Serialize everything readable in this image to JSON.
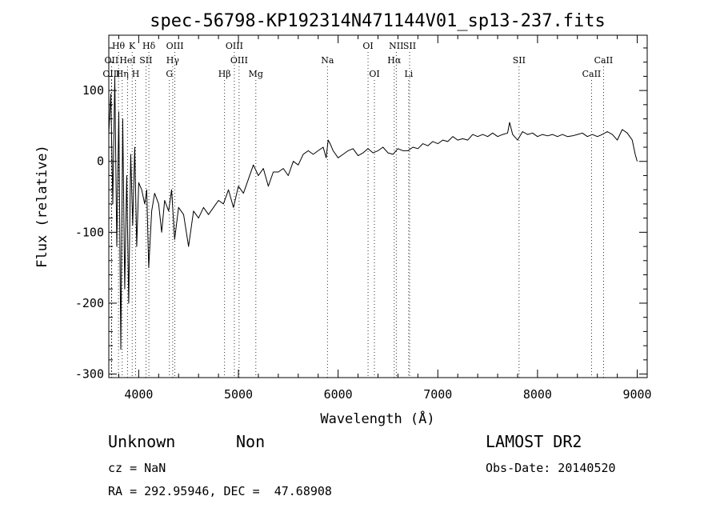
{
  "chart_data": {
    "type": "line",
    "title": "spec-56798-KP192314N471144V01_sp13-237.fits",
    "xlabel": "Wavelength (Å)",
    "ylabel": "Flux (relative)",
    "xlim": [
      3700,
      9100
    ],
    "ylim": [
      -305,
      178
    ],
    "xticks": [
      4000,
      5000,
      6000,
      7000,
      8000,
      9000
    ],
    "yticks": [
      -300,
      -200,
      -100,
      0,
      100
    ],
    "grid": false,
    "spectral_lines": [
      {
        "label": "Hθ",
        "wavelength": 3797,
        "row": 1
      },
      {
        "label": "K",
        "wavelength": 3934,
        "row": 1
      },
      {
        "label": "Hδ",
        "wavelength": 4102,
        "row": 1
      },
      {
        "label": "OIII",
        "wavelength": 4363,
        "row": 1
      },
      {
        "label": "OIII",
        "wavelength": 4959,
        "row": 1
      },
      {
        "label": "OI",
        "wavelength": 6300,
        "row": 1
      },
      {
        "label": "NII",
        "wavelength": 6583,
        "row": 1
      },
      {
        "label": "SII",
        "wavelength": 6717,
        "row": 1
      },
      {
        "label": "OII",
        "wavelength": 3727,
        "row": 2
      },
      {
        "label": "HeI",
        "wavelength": 3889,
        "row": 2
      },
      {
        "label": "SII",
        "wavelength": 4072,
        "row": 2
      },
      {
        "label": "Hγ",
        "wavelength": 4341,
        "row": 2
      },
      {
        "label": "OIII",
        "wavelength": 5007,
        "row": 2
      },
      {
        "label": "Na",
        "wavelength": 5893,
        "row": 2
      },
      {
        "label": "Hα",
        "wavelength": 6563,
        "row": 2
      },
      {
        "label": "SII",
        "wavelength": 7815,
        "row": 2
      },
      {
        "label": "CaII",
        "wavelength": 8662,
        "row": 2
      },
      {
        "label": "OIII",
        "wavelength": 3727,
        "row": 3
      },
      {
        "label": "Hη",
        "wavelength": 3835,
        "row": 3
      },
      {
        "label": "H",
        "wavelength": 3969,
        "row": 3
      },
      {
        "label": "G",
        "wavelength": 4308,
        "row": 3
      },
      {
        "label": "Hβ",
        "wavelength": 4861,
        "row": 3
      },
      {
        "label": "Mg",
        "wavelength": 5175,
        "row": 3
      },
      {
        "label": "OI",
        "wavelength": 6364,
        "row": 3
      },
      {
        "label": "Li",
        "wavelength": 6708,
        "row": 3
      },
      {
        "label": "CaII",
        "wavelength": 8542,
        "row": 3
      }
    ],
    "series": [
      {
        "x": [
          3700,
          3720,
          3740,
          3760,
          3780,
          3800,
          3820,
          3840,
          3860,
          3880,
          3900,
          3920,
          3940,
          3960,
          3980,
          4000,
          4030,
          4060,
          4080,
          4100,
          4130,
          4160,
          4200,
          4230,
          4260,
          4300,
          4330,
          4360,
          4400,
          4450,
          4500,
          4550,
          4600,
          4650,
          4700,
          4750,
          4800,
          4850,
          4900,
          4950,
          5000,
          5050,
          5100,
          5150,
          5200,
          5250,
          5300,
          5350,
          5400,
          5450,
          5500,
          5550,
          5600,
          5650,
          5700,
          5750,
          5800,
          5850,
          5880,
          5900,
          5920,
          5950,
          6000,
          6050,
          6100,
          6150,
          6200,
          6250,
          6300,
          6350,
          6400,
          6450,
          6500,
          6550,
          6600,
          6650,
          6700,
          6750,
          6800,
          6850,
          6900,
          6950,
          7000,
          7050,
          7100,
          7150,
          7200,
          7250,
          7300,
          7350,
          7400,
          7450,
          7500,
          7550,
          7600,
          7650,
          7700,
          7720,
          7750,
          7800,
          7850,
          7900,
          7950,
          8000,
          8050,
          8100,
          8150,
          8200,
          8250,
          8300,
          8350,
          8400,
          8450,
          8500,
          8550,
          8600,
          8650,
          8700,
          8750,
          8800,
          8850,
          8900,
          8950,
          8980,
          9000
        ],
        "y": [
          40,
          95,
          -60,
          120,
          -120,
          70,
          -265,
          60,
          -180,
          -20,
          -200,
          10,
          -90,
          20,
          -120,
          -30,
          -40,
          -60,
          -40,
          -150,
          -70,
          -45,
          -60,
          -100,
          -55,
          -70,
          -40,
          -110,
          -65,
          -75,
          -120,
          -70,
          -80,
          -65,
          -75,
          -65,
          -55,
          -60,
          -40,
          -65,
          -35,
          -45,
          -25,
          -5,
          -20,
          -10,
          -35,
          -15,
          -15,
          -10,
          -20,
          0,
          -5,
          10,
          15,
          10,
          15,
          20,
          5,
          30,
          25,
          15,
          5,
          10,
          15,
          18,
          8,
          12,
          18,
          12,
          15,
          20,
          12,
          10,
          18,
          15,
          15,
          20,
          18,
          25,
          22,
          28,
          25,
          30,
          28,
          35,
          30,
          32,
          30,
          38,
          35,
          38,
          35,
          40,
          35,
          38,
          40,
          55,
          38,
          30,
          42,
          38,
          40,
          35,
          38,
          36,
          38,
          35,
          38,
          35,
          36,
          38,
          40,
          35,
          38,
          35,
          38,
          42,
          38,
          30,
          45,
          40,
          30,
          10,
          0
        ]
      }
    ]
  },
  "footer": {
    "class_label": "Unknown",
    "subclass_label": "Non",
    "redshift": "cz = NaN",
    "coordinates": "RA = 292.95946, DEC =  47.68908",
    "survey": "LAMOST DR2",
    "obs_date": "Obs-Date: 20140520"
  }
}
